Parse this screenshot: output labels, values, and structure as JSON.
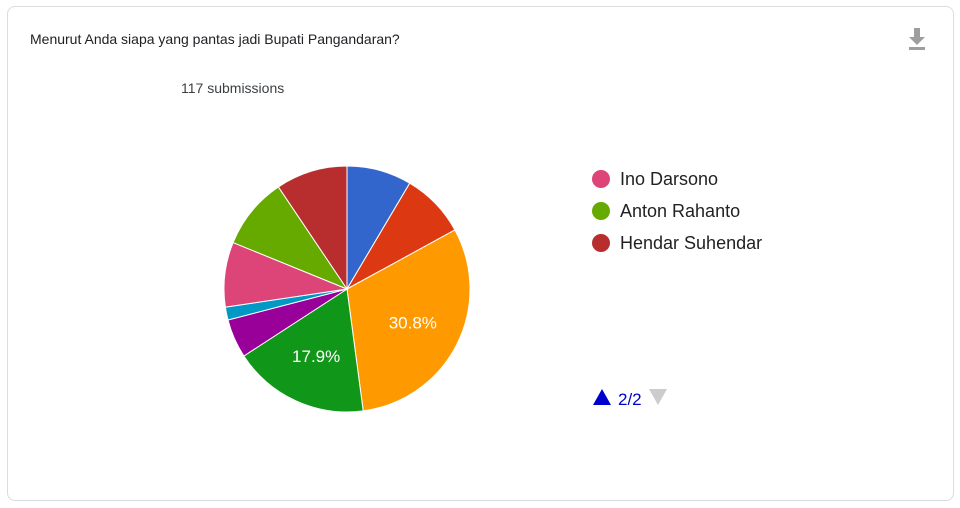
{
  "question": "Menurut Anda siapa yang pantas jadi Bupati Pangandaran?",
  "submissions": "117 submissions",
  "download_icon": "download-icon",
  "pager": {
    "label": "2/2",
    "up_color": "#0000cc",
    "down_color": "#cccccc"
  },
  "legend": [
    {
      "name": "Ino Darsono",
      "color": "#dd4477"
    },
    {
      "name": "Anton Rahanto",
      "color": "#66aa00"
    },
    {
      "name": "Hendar Suhendar",
      "color": "#b82e2e"
    }
  ],
  "chart_data": {
    "type": "pie",
    "start_angle_deg": 0,
    "slices": [
      {
        "value": 8.5,
        "color": "#3366cc",
        "label": ""
      },
      {
        "value": 8.5,
        "color": "#dc3912",
        "label": ""
      },
      {
        "value": 30.8,
        "color": "#ff9900",
        "label": "30.8%"
      },
      {
        "value": 17.9,
        "color": "#109618",
        "label": "17.9%"
      },
      {
        "value": 5.1,
        "color": "#990099",
        "label": ""
      },
      {
        "value": 1.7,
        "color": "#0099c6",
        "label": ""
      },
      {
        "value": 8.5,
        "color": "#dd4477",
        "label": ""
      },
      {
        "value": 9.4,
        "color": "#66aa00",
        "label": ""
      },
      {
        "value": 9.4,
        "color": "#b82e2e",
        "label": ""
      }
    ]
  }
}
